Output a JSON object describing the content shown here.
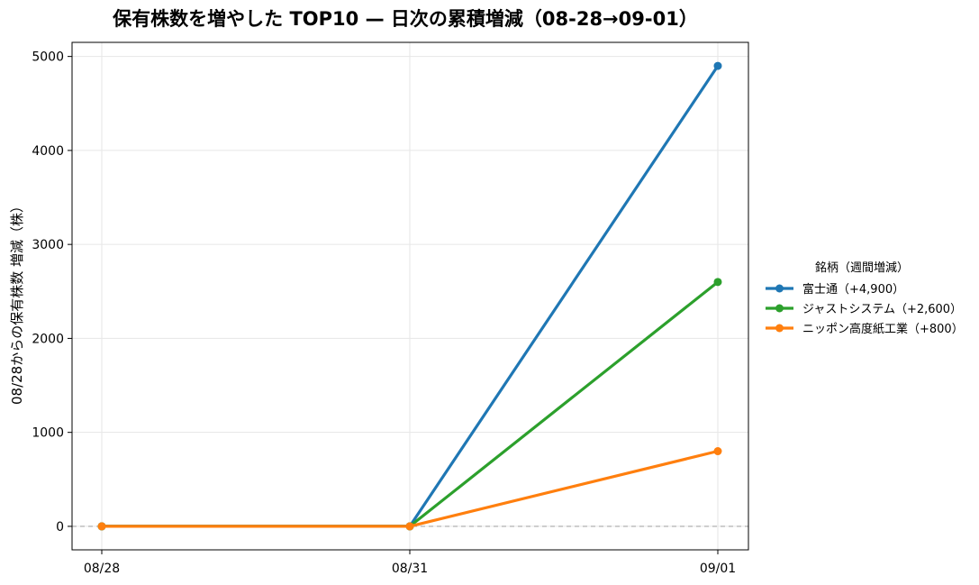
{
  "chart_data": {
    "type": "line",
    "title": "保有株数を増やした TOP10 — 日次の累積増減（08-28→09-01）",
    "xlabel": "",
    "ylabel": "08/28からの保有株数 増減（株）",
    "categories": [
      "08/28",
      "08/31",
      "09/01"
    ],
    "ylim": [
      -250,
      5150
    ],
    "yticks": [
      0,
      1000,
      2000,
      3000,
      4000,
      5000
    ],
    "grid": true,
    "zero_line": true,
    "legend": {
      "title": "銘柄（週間増減）",
      "placement": "right"
    },
    "series": [
      {
        "name": "富士通（+4,900）",
        "values": [
          0,
          0,
          4900
        ],
        "color": "#1f77b4"
      },
      {
        "name": "ジャストシステム（+2,600）",
        "values": [
          0,
          0,
          2600
        ],
        "color": "#2ca02c"
      },
      {
        "name": "ニッポン高度紙工業（+800）",
        "values": [
          0,
          0,
          800
        ],
        "color": "#ff7f0e"
      }
    ]
  }
}
